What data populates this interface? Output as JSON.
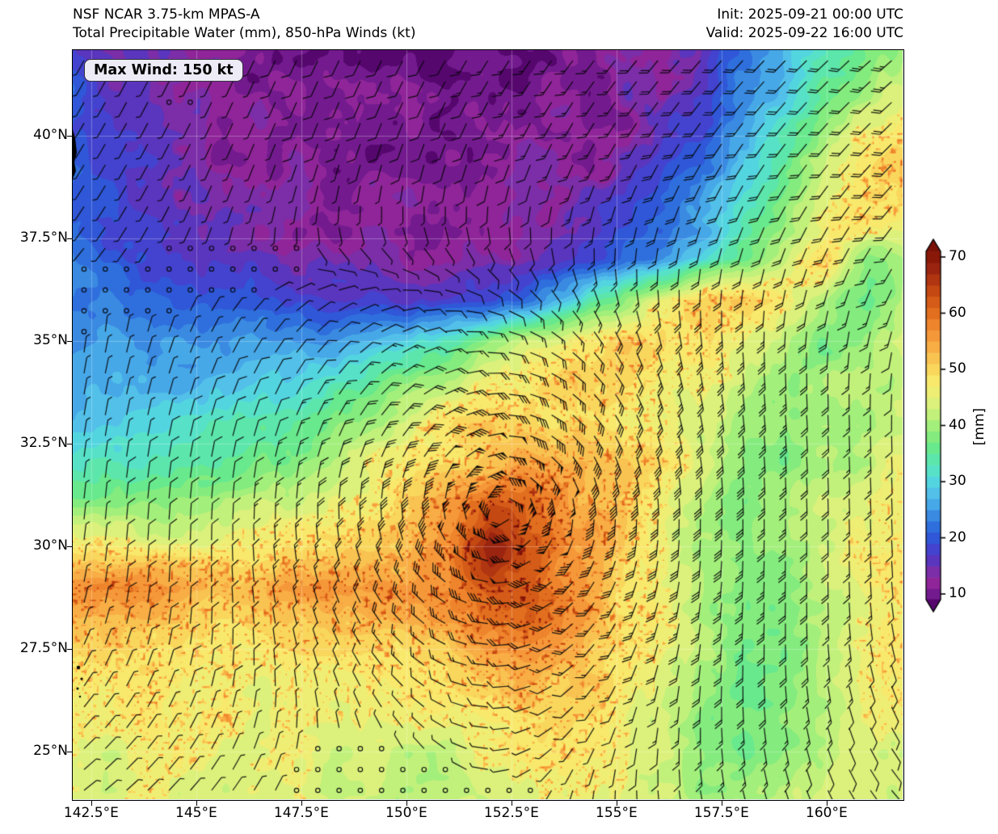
{
  "header": {
    "model": "NSF NCAR 3.75-km MPAS-A",
    "field": "Total Precipitable Water (mm), 850-hPa Winds (kt)",
    "init": "Init: 2025-09-21 00:00 UTC",
    "valid": "Valid: 2025-09-22 16:00 UTC"
  },
  "annotation": {
    "max_wind": "Max Wind: 150 kt"
  },
  "chart_data": {
    "type": "heatmap",
    "title": "Total Precipitable Water (mm), 850-hPa Winds (kt)",
    "model": "NSF NCAR 3.75-km MPAS-A",
    "units": "mm",
    "x_tick_values": [
      142.5,
      145,
      147.5,
      150,
      152.5,
      155,
      157.5,
      160
    ],
    "x_tick_labels": [
      "142.5°E",
      "145°E",
      "147.5°E",
      "150°E",
      "152.5°E",
      "155°E",
      "157.5°E",
      "160°E"
    ],
    "y_tick_values": [
      40,
      37.5,
      35,
      32.5,
      30,
      27.5,
      25
    ],
    "y_tick_labels": [
      "40°N",
      "37.5°N",
      "35°N",
      "32.5°N",
      "30°N",
      "27.5°N",
      "25°N"
    ],
    "lon_range_deg_e": [
      142.06,
      161.83
    ],
    "lat_range_deg_n": [
      23.82,
      42.09
    ],
    "grid": {
      "lons_deg_e": [
        142,
        143,
        144,
        145,
        146,
        147,
        148,
        149,
        150,
        151,
        152,
        153,
        154,
        155,
        156,
        157,
        158,
        159,
        160,
        161,
        162
      ],
      "lats_deg_n": [
        42,
        41,
        40,
        39,
        38,
        37,
        36,
        35,
        34,
        33,
        32,
        31,
        30,
        29,
        28,
        27,
        26,
        25,
        24
      ],
      "tpw_mm": [
        [
          19,
          16,
          14,
          12,
          11,
          10,
          9,
          9,
          9,
          9,
          9,
          10,
          10,
          11,
          13,
          16,
          21,
          27,
          33,
          38,
          41
        ],
        [
          20,
          17,
          14,
          12,
          11,
          10,
          10,
          9,
          9,
          9,
          10,
          10,
          11,
          12,
          14,
          18,
          23,
          29,
          36,
          42,
          45
        ],
        [
          20,
          18,
          15,
          13,
          12,
          11,
          10,
          10,
          10,
          10,
          10,
          11,
          12,
          13,
          16,
          20,
          26,
          32,
          40,
          46,
          49
        ],
        [
          21,
          19,
          16,
          14,
          13,
          12,
          11,
          11,
          11,
          11,
          11,
          12,
          13,
          15,
          18,
          23,
          29,
          36,
          43,
          49,
          51
        ],
        [
          21,
          19,
          17,
          15,
          14,
          13,
          12,
          12,
          12,
          12,
          12,
          13,
          14,
          17,
          21,
          26,
          33,
          40,
          47,
          51,
          48
        ],
        [
          22,
          20,
          18,
          17,
          16,
          15,
          14,
          13,
          13,
          13,
          13,
          14,
          16,
          19,
          24,
          30,
          37,
          44,
          50,
          38,
          43
        ],
        [
          23,
          22,
          21,
          20,
          19,
          18,
          17,
          16,
          16,
          17,
          19,
          23,
          30,
          38,
          46,
          50,
          52,
          46,
          40,
          36,
          43
        ],
        [
          26,
          25,
          24,
          24,
          24,
          24,
          25,
          27,
          30,
          34,
          39,
          44,
          48,
          50,
          50,
          48,
          45,
          41,
          38,
          41,
          44
        ],
        [
          27,
          27,
          27,
          27,
          28,
          30,
          32,
          35,
          39,
          43,
          46,
          48,
          50,
          50,
          48,
          46,
          44,
          38,
          40,
          42,
          44
        ],
        [
          29,
          29,
          30,
          31,
          33,
          35,
          38,
          42,
          45,
          48,
          50,
          50,
          50,
          48,
          46,
          42,
          40,
          38,
          40,
          42,
          45
        ],
        [
          34,
          33,
          33,
          34,
          36,
          38,
          41,
          44,
          47,
          50,
          52,
          54,
          54,
          52,
          48,
          44,
          40,
          38,
          40,
          42,
          46
        ],
        [
          40,
          39,
          39,
          40,
          41,
          43,
          45,
          47,
          50,
          56,
          64,
          60,
          54,
          52,
          46,
          40,
          38,
          40,
          43,
          45,
          46
        ],
        [
          47,
          47,
          47,
          46,
          46,
          47,
          48,
          50,
          53,
          58,
          70,
          64,
          56,
          52,
          46,
          40,
          38,
          40,
          43,
          46,
          48
        ],
        [
          56,
          58,
          56,
          53,
          52,
          54,
          56,
          56,
          55,
          57,
          62,
          62,
          56,
          50,
          46,
          42,
          38,
          38,
          42,
          46,
          48
        ],
        [
          52,
          51,
          50,
          50,
          49,
          49,
          50,
          51,
          52,
          54,
          57,
          59,
          56,
          50,
          46,
          42,
          38,
          38,
          42,
          46,
          48
        ],
        [
          48,
          48,
          48,
          48,
          47,
          47,
          47,
          48,
          49,
          50,
          52,
          54,
          52,
          49,
          45,
          40,
          37,
          38,
          42,
          45,
          47
        ],
        [
          46,
          46,
          47,
          47,
          46,
          46,
          46,
          46,
          47,
          48,
          49,
          50,
          50,
          48,
          44,
          40,
          36,
          38,
          41,
          44,
          45
        ],
        [
          45,
          45,
          46,
          46,
          45,
          44,
          44,
          43,
          42,
          43,
          45,
          47,
          47,
          46,
          43,
          39,
          37,
          39,
          42,
          44,
          44
        ],
        [
          43,
          44,
          45,
          45,
          45,
          44,
          43,
          42,
          42,
          42,
          43,
          45,
          46,
          45,
          42,
          40,
          39,
          41,
          43,
          44,
          44
        ]
      ]
    },
    "colorbar": {
      "label": "[mm]",
      "ticks": [
        10,
        20,
        30,
        40,
        50,
        60,
        70
      ],
      "range": [
        8,
        72
      ],
      "stops": [
        {
          "v": 8,
          "c": "#56076e"
        },
        {
          "v": 10,
          "c": "#731b8e"
        },
        {
          "v": 12,
          "c": "#8f2598"
        },
        {
          "v": 14,
          "c": "#7b2ea8"
        },
        {
          "v": 16,
          "c": "#5a35bd"
        },
        {
          "v": 18,
          "c": "#4343cf"
        },
        {
          "v": 20,
          "c": "#2f57d7"
        },
        {
          "v": 22,
          "c": "#2f6fdd"
        },
        {
          "v": 24,
          "c": "#3a8ae2"
        },
        {
          "v": 26,
          "c": "#47a8e8"
        },
        {
          "v": 28,
          "c": "#52c0e9"
        },
        {
          "v": 30,
          "c": "#53d5e0"
        },
        {
          "v": 32,
          "c": "#57e2c8"
        },
        {
          "v": 34,
          "c": "#5ce6ab"
        },
        {
          "v": 36,
          "c": "#68e98d"
        },
        {
          "v": 38,
          "c": "#84ec7e"
        },
        {
          "v": 40,
          "c": "#a3ef7b"
        },
        {
          "v": 42,
          "c": "#c2f17b"
        },
        {
          "v": 44,
          "c": "#dcf17b"
        },
        {
          "v": 46,
          "c": "#eeee74"
        },
        {
          "v": 48,
          "c": "#f8e96c"
        },
        {
          "v": 50,
          "c": "#f9d75d"
        },
        {
          "v": 52,
          "c": "#f9c351"
        },
        {
          "v": 54,
          "c": "#f8ad45"
        },
        {
          "v": 56,
          "c": "#f5983a"
        },
        {
          "v": 58,
          "c": "#ee842c"
        },
        {
          "v": 60,
          "c": "#e26f1f"
        },
        {
          "v": 62,
          "c": "#d55c18"
        },
        {
          "v": 64,
          "c": "#c44812"
        },
        {
          "v": 66,
          "c": "#b03511"
        },
        {
          "v": 68,
          "c": "#9a2410"
        },
        {
          "v": 70,
          "c": "#891808"
        },
        {
          "v": 72,
          "c": "#7a1208"
        }
      ]
    },
    "wind": {
      "type": "barbs",
      "units": "kt",
      "max_wind_kt": 150,
      "storm_center_lon_e": 152.3,
      "storm_center_lat_n": 30.9
    }
  }
}
